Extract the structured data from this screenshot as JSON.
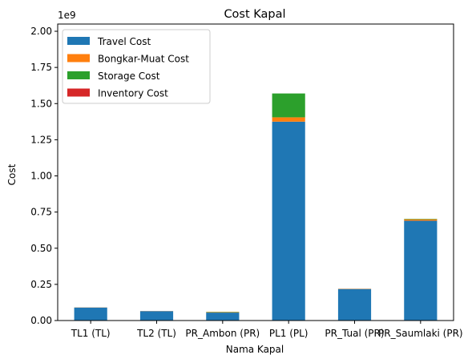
{
  "chart_data": {
    "type": "bar",
    "stacked": true,
    "title": "Cost Kapal",
    "xlabel": "Nama Kapal",
    "ylabel": "Cost",
    "offset_text": "1e9",
    "categories": [
      "TL1 (TL)",
      "TL2 (TL)",
      "PR_Ambon (PR)",
      "PL1 (PL)",
      "PR_Tual (PR)",
      "PR_Saumlaki (PR)"
    ],
    "ylim": [
      0,
      2.05
    ],
    "yticks": [
      "0.00",
      "0.25",
      "0.50",
      "0.75",
      "1.00",
      "1.25",
      "1.50",
      "1.75",
      "2.00"
    ],
    "ytick_values": [
      0,
      0.25,
      0.5,
      0.75,
      1.0,
      1.25,
      1.5,
      1.75,
      2.0
    ],
    "grid": false,
    "legend_position": "top-left",
    "series": [
      {
        "name": "Travel Cost",
        "color": "#1f77b4",
        "values": [
          0.09,
          0.065,
          0.055,
          1.375,
          0.218,
          0.69
        ]
      },
      {
        "name": "Bongkar-Muat Cost",
        "color": "#ff7f0e",
        "values": [
          0.001,
          0.001,
          0.003,
          0.03,
          0.002,
          0.01
        ]
      },
      {
        "name": "Storage Cost",
        "color": "#2ca02c",
        "values": [
          0.0,
          0.0,
          0.002,
          0.165,
          0.0,
          0.003
        ]
      },
      {
        "name": "Inventory Cost",
        "color": "#d62728",
        "values": [
          0.0,
          0.0,
          0.0,
          0.0,
          0.0,
          0.0
        ]
      }
    ]
  }
}
